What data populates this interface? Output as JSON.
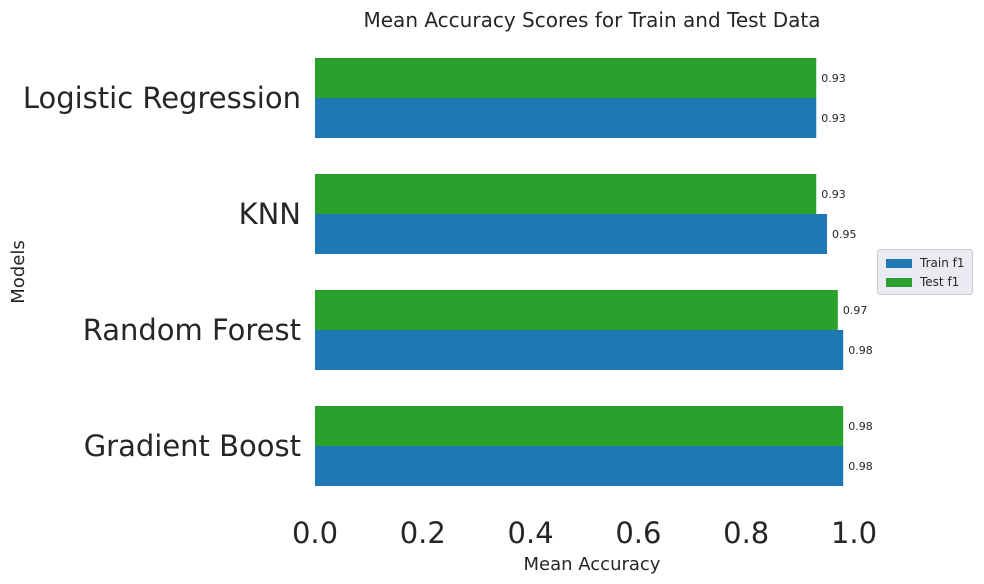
{
  "chart_data": {
    "type": "bar",
    "orientation": "horizontal",
    "title": "Mean Accuracy Scores for Train and Test Data",
    "xlabel": "Mean Accuracy",
    "ylabel": "Models",
    "categories": [
      "Logistic Regression",
      "KNN",
      "Random Forest",
      "Gradient Boost"
    ],
    "series": [
      {
        "name": "Train f1",
        "color": "#1f77b4",
        "values": [
          0.93,
          0.95,
          0.98,
          0.98
        ],
        "labels": [
          "0.93",
          "0.95",
          "0.98",
          "0.98"
        ]
      },
      {
        "name": "Test f1",
        "color": "#2ca02c",
        "values": [
          0.93,
          0.93,
          0.97,
          0.98
        ],
        "labels": [
          "0.93",
          "0.93",
          "0.97",
          "0.98"
        ]
      }
    ],
    "xlim": [
      0.0,
      1.0
    ],
    "xticks": [
      "0.0",
      "0.2",
      "0.4",
      "0.6",
      "0.8",
      "1.0"
    ],
    "grid": false,
    "legend_position": "right"
  }
}
